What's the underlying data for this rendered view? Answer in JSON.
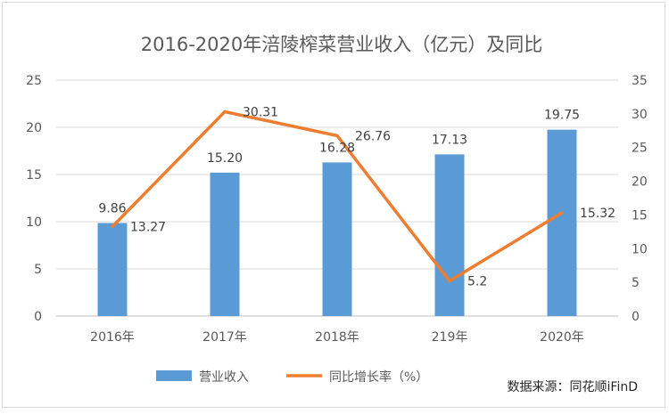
{
  "chart_data": {
    "type": "bar",
    "title": "2016-2020年涪陵榨菜营业收入（亿元）及同比",
    "categories": [
      "2016年",
      "2017年",
      "2018年",
      "219年",
      "2020年"
    ],
    "series": [
      {
        "name": "营业收入",
        "type": "bar",
        "axis": "left",
        "color": "#5b9bd5",
        "values": [
          9.86,
          15.2,
          16.28,
          17.13,
          19.75
        ],
        "labels": [
          "9.86",
          "15.20",
          "16.28",
          "17.13",
          "19.75"
        ]
      },
      {
        "name": "同比增长率（%）",
        "type": "line",
        "axis": "right",
        "color": "#ed7d31",
        "values": [
          13.27,
          30.31,
          26.76,
          5.2,
          15.32
        ],
        "labels": [
          "13.27",
          "30.31",
          "26.76",
          "5.2",
          "15.32"
        ]
      }
    ],
    "y_left": {
      "ylim": [
        0,
        25
      ],
      "ticks": [
        "0",
        "5",
        "10",
        "15",
        "20",
        "25"
      ]
    },
    "y_right": {
      "ylim": [
        0,
        35
      ],
      "ticks": [
        "0",
        "5",
        "10",
        "15",
        "20",
        "25",
        "30",
        "35"
      ]
    },
    "grid": true,
    "legend": "bottom-center",
    "source": "数据来源：同花顺iFinD"
  }
}
